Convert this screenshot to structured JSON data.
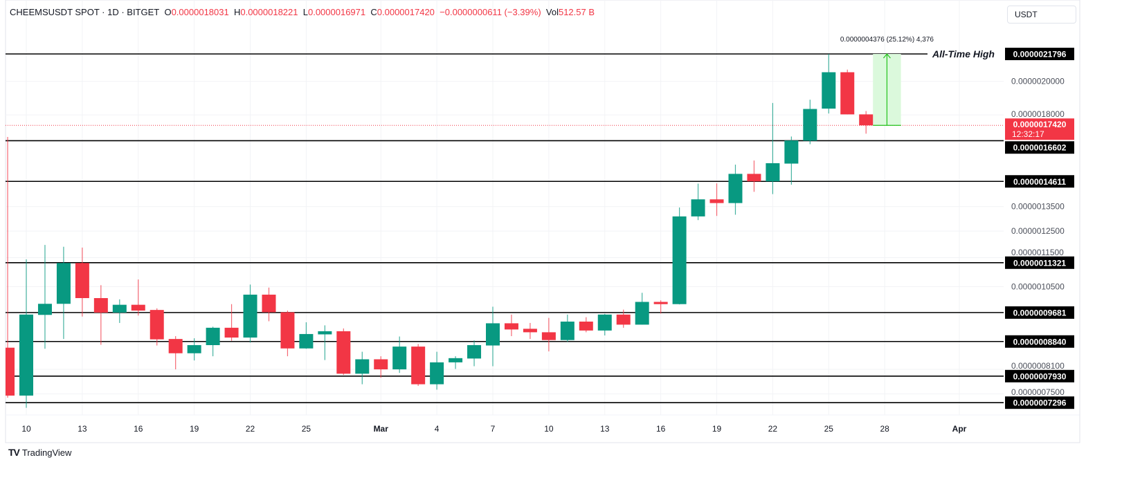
{
  "header": {
    "symbol": "CHEEMSUSDT SPOT · 1D · BITGET",
    "o_label": "O",
    "o_value": "0.0000018031",
    "h_label": "H",
    "h_value": "0.0000018221",
    "l_label": "L",
    "l_value": "0.0000016971",
    "c_label": "C",
    "c_value": "0.0000017420",
    "change": "−0.0000000611 (−3.39%)",
    "vol_label": "Vol",
    "vol_value": "512.57 B"
  },
  "currency_button": "USDT",
  "branding": "TradingView",
  "colors": {
    "up": "#089981",
    "down": "#f23645",
    "level": "#000000",
    "measure": "#22c21b",
    "measure_fill": "#dbf9dc"
  },
  "chart_data": {
    "type": "candlestick",
    "title": "CHEEMSUSDT SPOT · 1D · BITGET",
    "yscale": "log",
    "ylim": [
      6.9e-07,
      2.5e-06
    ],
    "grid": true,
    "y_tick_labels": [
      "0.0000020000",
      "0.0000018000",
      "0.0000013500",
      "0.0000012500",
      "0.0000011500",
      "0.0000010500",
      "0.0000008100",
      "0.0000007500"
    ],
    "x_tick_labels": [
      {
        "label": "10",
        "date": "Feb 10"
      },
      {
        "label": "13",
        "date": "Feb 13"
      },
      {
        "label": "16",
        "date": "Feb 16"
      },
      {
        "label": "19",
        "date": "Feb 19"
      },
      {
        "label": "22",
        "date": "Feb 22"
      },
      {
        "label": "25",
        "date": "Feb 25"
      },
      {
        "label": "Mar",
        "date": "Mar 1"
      },
      {
        "label": "4",
        "date": "Mar 4"
      },
      {
        "label": "7",
        "date": "Mar 7"
      },
      {
        "label": "10",
        "date": "Mar 10"
      },
      {
        "label": "13",
        "date": "Mar 13"
      },
      {
        "label": "16",
        "date": "Mar 16"
      },
      {
        "label": "19",
        "date": "Mar 19"
      },
      {
        "label": "22",
        "date": "Mar 22"
      },
      {
        "label": "25",
        "date": "Mar 25"
      },
      {
        "label": "28",
        "date": "Mar 28"
      },
      {
        "label": "Apr",
        "date": "Apr 1"
      }
    ],
    "candles": [
      {
        "date": "Feb 9",
        "o": 8.67e-07,
        "h": 1.68e-06,
        "l": 7.41e-07,
        "c": 7.46e-07
      },
      {
        "date": "Feb 10",
        "o": 7.46e-07,
        "h": 1.144e-06,
        "l": 7.18e-07,
        "c": 9.62e-07
      },
      {
        "date": "Feb 11",
        "o": 9.61e-07,
        "h": 1.197e-06,
        "l": 8.64e-07,
        "c": 9.95e-07
      },
      {
        "date": "Feb 12",
        "o": 9.95e-07,
        "h": 1.19e-06,
        "l": 8.91e-07,
        "c": 1.131e-06
      },
      {
        "date": "Feb 13",
        "o": 1.131e-06,
        "h": 1.187e-06,
        "l": 9.56e-07,
        "c": 1.013e-06
      },
      {
        "date": "Feb 14",
        "o": 1.013e-06,
        "h": 1.055e-06,
        "l": 8.75e-07,
        "c": 9.68e-07
      },
      {
        "date": "Feb 15",
        "o": 9.68e-07,
        "h": 1.009e-06,
        "l": 9.37e-07,
        "c": 9.92e-07
      },
      {
        "date": "Feb 16",
        "o": 9.92e-07,
        "h": 1.074e-06,
        "l": 9.59e-07,
        "c": 9.74e-07
      },
      {
        "date": "Feb 17",
        "o": 9.76e-07,
        "h": 9.81e-07,
        "l": 8.73e-07,
        "c": 8.9e-07
      },
      {
        "date": "Feb 18",
        "o": 8.91e-07,
        "h": 8.99e-07,
        "l": 8.1e-07,
        "c": 8.52e-07
      },
      {
        "date": "Feb 19",
        "o": 8.52e-07,
        "h": 8.93e-07,
        "l": 8.33e-07,
        "c": 8.74e-07
      },
      {
        "date": "Feb 20",
        "o": 8.74e-07,
        "h": 9.26e-07,
        "l": 8.44e-07,
        "c": 9.23e-07
      },
      {
        "date": "Feb 21",
        "o": 9.23e-07,
        "h": 9.94e-07,
        "l": 8.86e-07,
        "c": 8.95e-07
      },
      {
        "date": "Feb 22",
        "o": 8.95e-07,
        "h": 1.057e-06,
        "l": 8.81e-07,
        "c": 1.024e-06
      },
      {
        "date": "Feb 23",
        "o": 1.024e-06,
        "h": 1.047e-06,
        "l": 9.42e-07,
        "c": 9.69e-07
      },
      {
        "date": "Feb 24",
        "o": 9.69e-07,
        "h": 9.74e-07,
        "l": 8.44e-07,
        "c": 8.65e-07
      },
      {
        "date": "Feb 25",
        "o": 8.65e-07,
        "h": 9.39e-07,
        "l": 8.64e-07,
        "c": 9.05e-07
      },
      {
        "date": "Feb 26",
        "o": 9.04e-07,
        "h": 9.3e-07,
        "l": 8.34e-07,
        "c": 9.13e-07
      },
      {
        "date": "Feb 27",
        "o": 9.13e-07,
        "h": 9.21e-07,
        "l": 7.96e-07,
        "c": 7.99e-07
      },
      {
        "date": "Feb 28",
        "o": 7.99e-07,
        "h": 8.56e-07,
        "l": 7.73e-07,
        "c": 8.36e-07
      },
      {
        "date": "Mar 1",
        "o": 8.36e-07,
        "h": 8.44e-07,
        "l": 7.89e-07,
        "c": 8.1e-07
      },
      {
        "date": "Mar 2",
        "o": 8.1e-07,
        "h": 8.98e-07,
        "l": 8.01e-07,
        "c": 8.7e-07
      },
      {
        "date": "Mar 3",
        "o": 8.7e-07,
        "h": 8.77e-07,
        "l": 7.69e-07,
        "c": 7.73e-07
      },
      {
        "date": "Mar 4",
        "o": 7.73e-07,
        "h": 8.56e-07,
        "l": 7.6e-07,
        "c": 8.28e-07
      },
      {
        "date": "Mar 5",
        "o": 8.28e-07,
        "h": 8.44e-07,
        "l": 8.11e-07,
        "c": 8.39e-07
      },
      {
        "date": "Mar 6",
        "o": 8.38e-07,
        "h": 8.87e-07,
        "l": 8.18e-07,
        "c": 8.74e-07
      },
      {
        "date": "Mar 7",
        "o": 8.73e-07,
        "h": 9.86e-07,
        "l": 8.18e-07,
        "c": 9.36e-07
      },
      {
        "date": "Mar 8",
        "o": 9.36e-07,
        "h": 9.62e-07,
        "l": 8.99e-07,
        "c": 9.18e-07
      },
      {
        "date": "Mar 9",
        "o": 9.2e-07,
        "h": 9.37e-07,
        "l": 8.91e-07,
        "c": 9.1e-07
      },
      {
        "date": "Mar 10",
        "o": 9.1e-07,
        "h": 9.52e-07,
        "l": 8.57e-07,
        "c": 8.88e-07
      },
      {
        "date": "Mar 11",
        "o": 8.88e-07,
        "h": 9.62e-07,
        "l": 8.83e-07,
        "c": 9.41e-07
      },
      {
        "date": "Mar 12",
        "o": 9.41e-07,
        "h": 9.54e-07,
        "l": 9.1e-07,
        "c": 9.15e-07
      },
      {
        "date": "Mar 13",
        "o": 9.15e-07,
        "h": 9.64e-07,
        "l": 9.01e-07,
        "c": 9.62e-07
      },
      {
        "date": "Mar 14",
        "o": 9.62e-07,
        "h": 9.77e-07,
        "l": 9.23e-07,
        "c": 9.32e-07
      },
      {
        "date": "Mar 15",
        "o": 9.32e-07,
        "h": 1.03e-06,
        "l": 9.32e-07,
        "c": 1.001e-06
      },
      {
        "date": "Mar 16",
        "o": 1.001e-06,
        "h": 1.006e-06,
        "l": 9.65e-07,
        "c": 9.94e-07
      },
      {
        "date": "Mar 17",
        "o": 9.94e-07,
        "h": 1.346e-06,
        "l": 9.93e-07,
        "c": 1.309e-06
      },
      {
        "date": "Mar 18",
        "o": 1.309e-06,
        "h": 1.451e-06,
        "l": 1.294e-06,
        "c": 1.381e-06
      },
      {
        "date": "Mar 19",
        "o": 1.381e-06,
        "h": 1.452e-06,
        "l": 1.311e-06,
        "c": 1.365e-06
      },
      {
        "date": "Mar 20",
        "o": 1.365e-06,
        "h": 1.54e-06,
        "l": 1.316e-06,
        "c": 1.496e-06
      },
      {
        "date": "Mar 21",
        "o": 1.496e-06,
        "h": 1.56e-06,
        "l": 1.414e-06,
        "c": 1.461e-06
      },
      {
        "date": "Mar 22",
        "o": 1.461e-06,
        "h": 1.869e-06,
        "l": 1.404e-06,
        "c": 1.547e-06
      },
      {
        "date": "Mar 23",
        "o": 1.545e-06,
        "h": 1.682e-06,
        "l": 1.446e-06,
        "c": 1.661e-06
      },
      {
        "date": "Mar 24",
        "o": 1.66e-06,
        "h": 1.888e-06,
        "l": 1.642e-06,
        "c": 1.834e-06
      },
      {
        "date": "Mar 25",
        "o": 1.836e-06,
        "h": 2.1796e-06,
        "l": 1.808e-06,
        "c": 2.058e-06
      },
      {
        "date": "Mar 26",
        "o": 2.058e-06,
        "h": 2.075e-06,
        "l": 1.8031e-06,
        "c": 1.8031e-06
      },
      {
        "date": "Mar 27",
        "o": 1.8031e-06,
        "h": 1.8221e-06,
        "l": 1.6971e-06,
        "c": 1.742e-06
      }
    ],
    "levels": [
      {
        "price": 2.1796e-06,
        "label": "0.0000021796",
        "annotation": "All-Time High"
      },
      {
        "price": 1.6602e-06,
        "label": "0.0000016602"
      },
      {
        "price": 1.4611e-06,
        "label": "0.0000014611"
      },
      {
        "price": 1.1321e-06,
        "label": "0.0000011321"
      },
      {
        "price": 9.681e-07,
        "label": "0.0000009681"
      },
      {
        "price": 8.84e-07,
        "label": "0.0000008840"
      },
      {
        "price": 7.93e-07,
        "label": "0.0000007930"
      },
      {
        "price": 7.296e-07,
        "label": "0.0000007296"
      }
    ],
    "current_price": {
      "price": 1.742e-06,
      "label": "0.0000017420",
      "countdown": "12:32:17"
    },
    "measurement": {
      "from": 1.742e-06,
      "to": 2.1796e-06,
      "start_date": "Mar 27",
      "end_date": "Mar 29",
      "text": "0.0000004376 (25.12%) 4,376"
    }
  }
}
